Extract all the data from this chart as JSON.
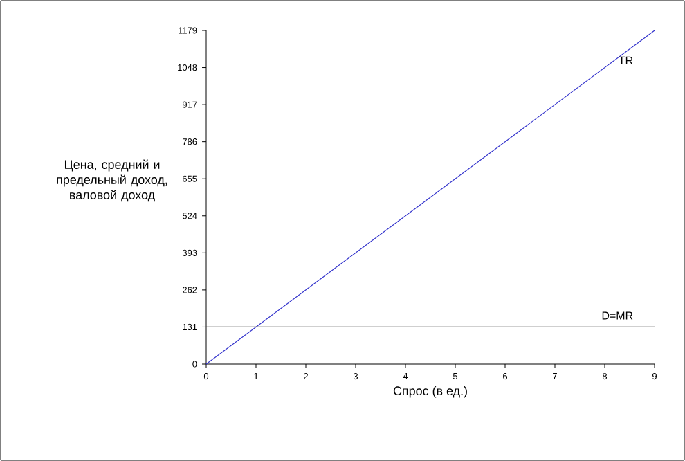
{
  "chart_data": {
    "type": "line",
    "xlabel": "Спрос (в ед.)",
    "ylabel": "Цена, средний и предельный доход, валовой доход",
    "x": [
      0,
      9
    ],
    "series": [
      {
        "name": "TR",
        "color": "#3333cc",
        "values": [
          0,
          1179
        ]
      },
      {
        "name": "D=MR",
        "color": "#404040",
        "values": [
          131,
          131
        ]
      }
    ],
    "xlim": [
      0,
      9
    ],
    "ylim": [
      0,
      1179
    ],
    "xticks": [
      0,
      1,
      2,
      3,
      4,
      5,
      6,
      7,
      8,
      9
    ],
    "yticks": [
      0,
      131,
      262,
      393,
      524,
      655,
      786,
      917,
      1048,
      1179
    ]
  }
}
